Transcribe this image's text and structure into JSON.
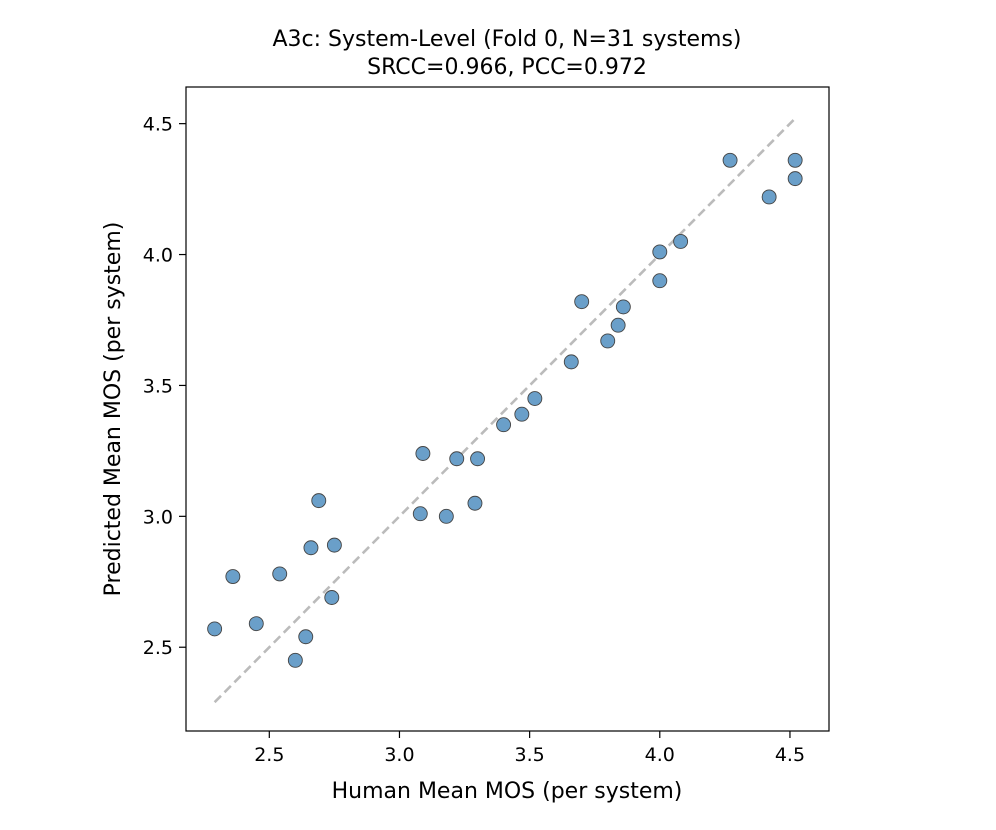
{
  "chart_data": {
    "type": "scatter",
    "title": "A3c: System-Level (Fold 0, N=31 systems)",
    "subtitle": "SRCC=0.966, PCC=0.972",
    "xlabel": "Human Mean MOS (per system)",
    "ylabel": "Predicted Mean MOS (per system)",
    "xlim": [
      2.18,
      4.65
    ],
    "ylim": [
      2.18,
      4.64
    ],
    "xticks": [
      2.5,
      3.0,
      3.5,
      4.0,
      4.5
    ],
    "yticks": [
      2.5,
      3.0,
      3.5,
      4.0,
      4.5
    ],
    "xtick_labels": [
      "2.5",
      "3.0",
      "3.5",
      "4.0",
      "4.5"
    ],
    "ytick_labels": [
      "2.5",
      "3.0",
      "3.5",
      "4.0",
      "4.5"
    ],
    "grid": false,
    "marker_color": "#6a9fc9",
    "marker_edge_color": "#444444",
    "reference_line": {
      "style": "dashed",
      "color": "#bbbbbb",
      "from": [
        2.29,
        2.29
      ],
      "to": [
        4.52,
        4.52
      ]
    },
    "series": [
      {
        "x": [
          2.29,
          2.36,
          2.45,
          2.54,
          2.6,
          2.64,
          2.66,
          2.69,
          2.74,
          2.75,
          3.08,
          3.09,
          3.18,
          3.22,
          3.29,
          3.3,
          3.4,
          3.47,
          3.52,
          3.66,
          3.7,
          3.8,
          3.84,
          3.86,
          4.0,
          4.0,
          4.08,
          4.27,
          4.42,
          4.52,
          4.52
        ],
        "y": [
          2.57,
          2.77,
          2.59,
          2.78,
          2.45,
          2.54,
          2.88,
          3.06,
          2.69,
          2.89,
          3.01,
          3.24,
          3.0,
          3.22,
          3.05,
          3.22,
          3.35,
          3.39,
          3.45,
          3.59,
          3.82,
          3.67,
          3.73,
          3.8,
          4.01,
          3.9,
          4.05,
          4.36,
          4.22,
          4.36,
          4.29
        ]
      }
    ]
  }
}
